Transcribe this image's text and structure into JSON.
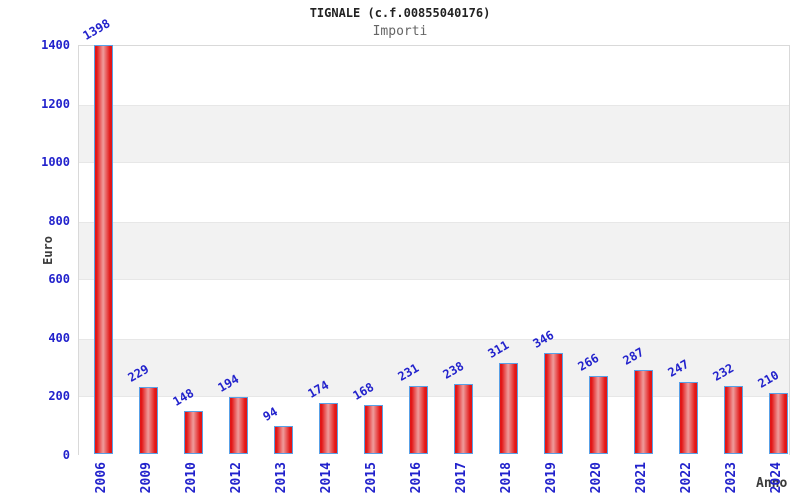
{
  "header": {
    "title": "TIGNALE (c.f.00855040176)",
    "subtitle": "Importi"
  },
  "chart_data": {
    "type": "bar",
    "title": "TIGNALE (c.f.00855040176)",
    "subtitle": "Importi",
    "categories": [
      "2006",
      "2009",
      "2010",
      "2012",
      "2013",
      "2014",
      "2015",
      "2016",
      "2017",
      "2018",
      "2019",
      "2020",
      "2021",
      "2022",
      "2023",
      "2024"
    ],
    "values": [
      1398,
      229,
      148,
      194,
      94,
      174,
      168,
      231,
      238,
      311,
      346,
      266,
      287,
      247,
      232,
      210
    ],
    "xlabel": "Anno",
    "ylabel": "Euro",
    "ylim": [
      0,
      1400
    ],
    "yticks": [
      0,
      200,
      400,
      600,
      800,
      1000,
      1200,
      1400
    ],
    "grid": "alternating-horizontal-bands",
    "legend_position": "none",
    "colors": {
      "bar_fill": "#e21717",
      "bar_highlight": "#ef9c9c",
      "bar_border": "#58a0e6",
      "tick_label": "#2222cc",
      "value_label": "#2222cc",
      "axis_title": "#3a3a3a",
      "band_gray": "#f2f2f2",
      "plot_border": "#d9d9d9",
      "title_color": "#222222",
      "subtitle_color": "#666666"
    }
  }
}
